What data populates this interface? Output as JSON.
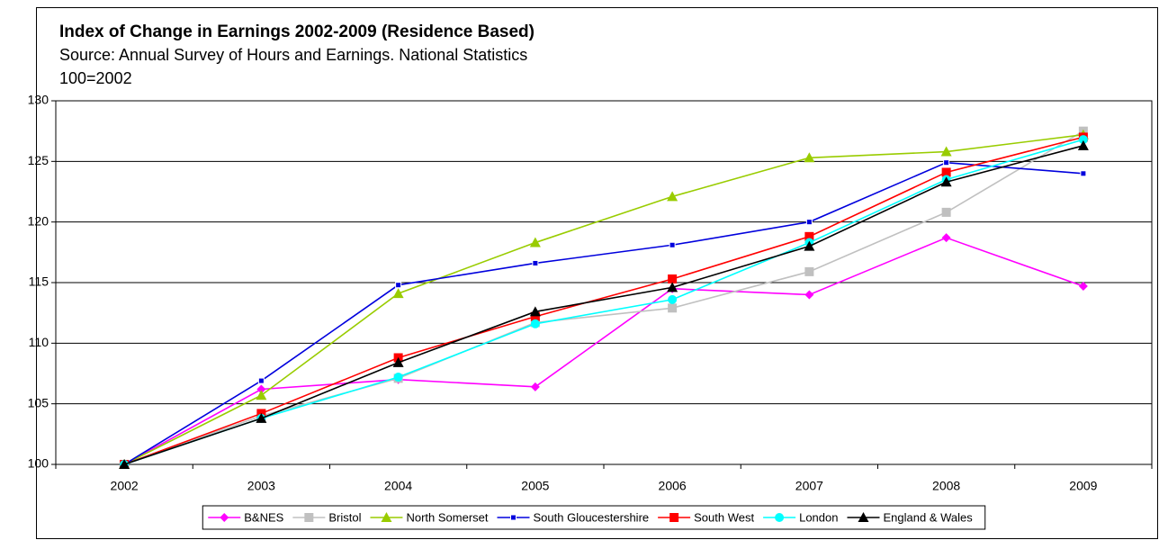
{
  "chart_data": {
    "type": "line",
    "title": "Index of Change in Earnings 2002-2009 (Residence Based)",
    "subtitle": "Source: Annual Survey of Hours and Earnings. National Statistics",
    "note": "100=2002",
    "categories": [
      "2002",
      "2003",
      "2004",
      "2005",
      "2006",
      "2007",
      "2008",
      "2009"
    ],
    "series": [
      {
        "name": "B&NES",
        "color": "#ff00ff",
        "marker": "diamond",
        "values": [
          100,
          106.2,
          107.0,
          106.4,
          114.5,
          114.0,
          118.7,
          114.7
        ]
      },
      {
        "name": "Bristol",
        "color": "#c0c0c0",
        "marker": "square",
        "values": [
          100,
          104.0,
          107.1,
          111.7,
          112.9,
          115.9,
          120.8,
          127.5
        ]
      },
      {
        "name": "North Somerset",
        "color": "#99cc00",
        "marker": "triangle",
        "values": [
          100,
          105.7,
          114.1,
          118.3,
          122.1,
          125.3,
          125.8,
          127.2
        ]
      },
      {
        "name": "South Gloucestershire",
        "color": "#0000dd",
        "marker": "small-square",
        "values": [
          100,
          106.9,
          114.8,
          116.6,
          118.1,
          120.0,
          124.9,
          124.0
        ]
      },
      {
        "name": "South West",
        "color": "#ff0000",
        "marker": "square",
        "values": [
          100,
          104.2,
          108.8,
          112.2,
          115.3,
          118.8,
          124.1,
          127.0
        ]
      },
      {
        "name": "London",
        "color": "#00ffff",
        "marker": "circle",
        "values": [
          100,
          103.8,
          107.2,
          111.6,
          113.6,
          118.3,
          123.5,
          126.8
        ]
      },
      {
        "name": "England & Wales",
        "color": "#000000",
        "marker": "triangle",
        "values": [
          100,
          103.8,
          108.4,
          112.6,
          114.6,
          118.0,
          123.3,
          126.3
        ]
      }
    ],
    "ylim": [
      100,
      130
    ],
    "yticks": [
      100,
      105,
      110,
      115,
      120,
      125,
      130
    ],
    "grid": true,
    "legend": "bottom"
  }
}
